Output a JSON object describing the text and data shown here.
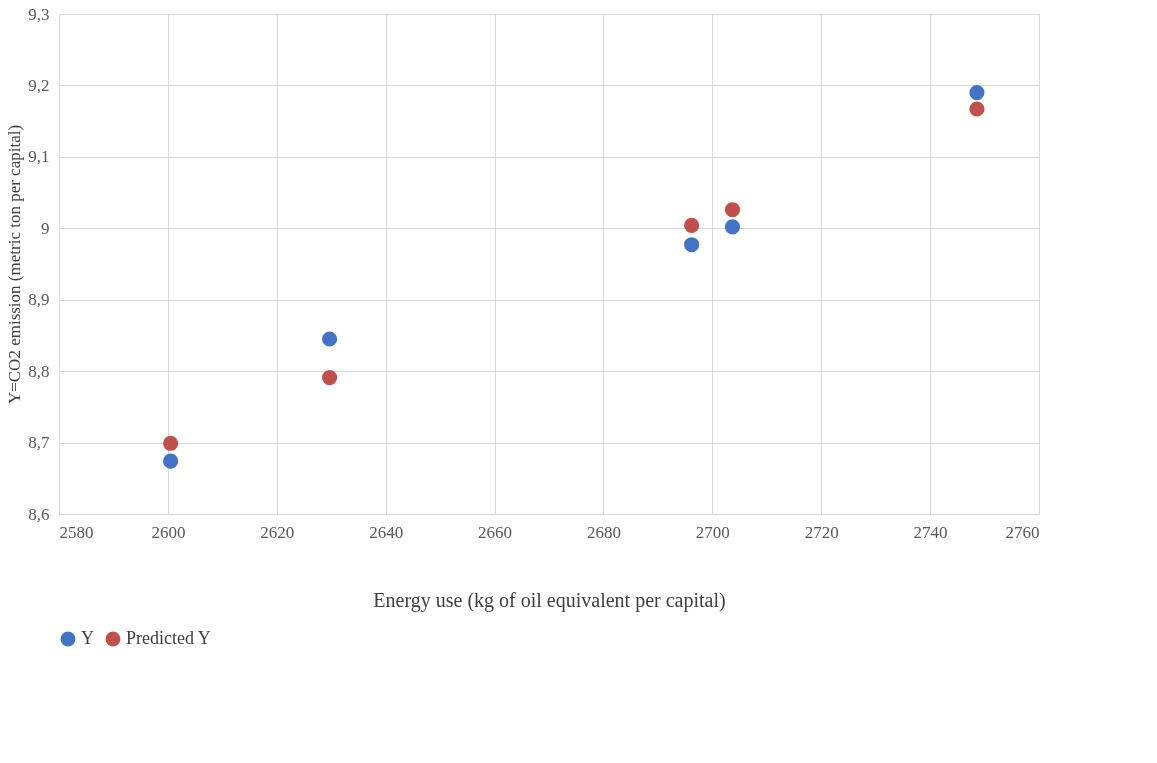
{
  "chart_data": {
    "type": "scatter",
    "xlabel": "Energy use (kg of oil equivalent per capital)",
    "ylabel": "Y=CO2 emission (metric ton per capital)",
    "x": [
      2600.5,
      2629.7,
      2696.2,
      2703.7,
      2748.6
    ],
    "series": [
      {
        "name": "Y",
        "color": "#4472c4",
        "values": [
          8.674,
          8.845,
          8.977,
          9.002,
          9.19
        ]
      },
      {
        "name": "Predicted Y",
        "color": "#c0504d",
        "values": [
          8.699,
          8.791,
          9.004,
          9.026,
          9.167
        ]
      }
    ],
    "xlim": [
      2580,
      2760
    ],
    "xticks": [
      2580,
      2600,
      2620,
      2640,
      2660,
      2680,
      2700,
      2720,
      2740,
      2760
    ],
    "ylim": [
      8.6,
      9.3
    ],
    "yticks": [
      {
        "value": 8.6,
        "label": "8,6"
      },
      {
        "value": 8.7,
        "label": "8,7"
      },
      {
        "value": 8.8,
        "label": "8,8"
      },
      {
        "value": 8.9,
        "label": "8,9"
      },
      {
        "value": 9.0,
        "label": "9"
      },
      {
        "value": 9.1,
        "label": "9,1"
      },
      {
        "value": 9.2,
        "label": "9,2"
      },
      {
        "value": 9.3,
        "label": "9,3"
      }
    ],
    "grid": true,
    "legend": "bottom",
    "marker": "circle"
  }
}
